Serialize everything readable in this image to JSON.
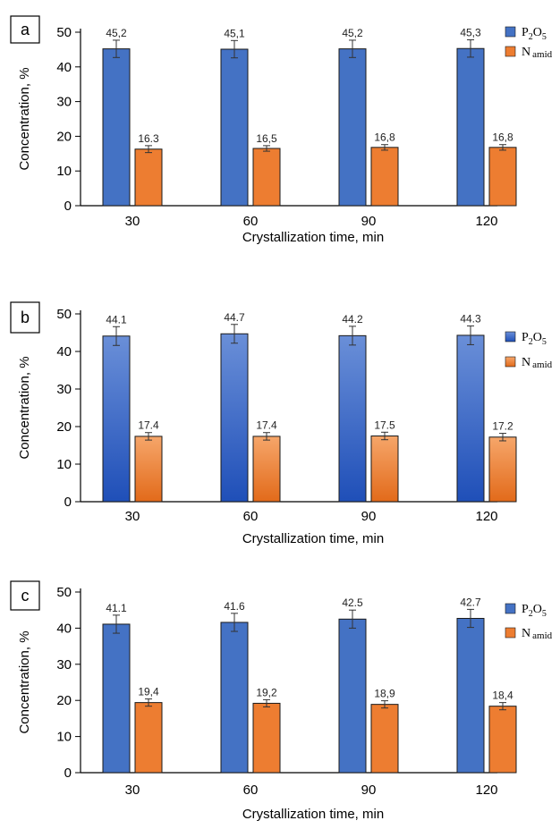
{
  "chart_data": [
    {
      "panel_label": "a",
      "type": "bar",
      "categories": [
        "30",
        "60",
        "90",
        "120"
      ],
      "series": [
        {
          "name": "P2O5",
          "legend": {
            "main": "P",
            "sub1": "2",
            "mid": "O",
            "sub2": "5"
          },
          "values": [
            45.2,
            45.1,
            45.2,
            45.3
          ],
          "labels": [
            "45,2",
            "45,1",
            "45,2",
            "45,3"
          ],
          "errors": [
            2.5,
            2.5,
            2.5,
            2.5
          ],
          "color": "#4472C4"
        },
        {
          "name": "Namid",
          "legend": {
            "main": "N",
            "sub1": "amid"
          },
          "values": [
            16.3,
            16.5,
            16.8,
            16.8
          ],
          "labels": [
            "16.3",
            "16,5",
            "16,8",
            "16,8"
          ],
          "errors": [
            1.0,
            0.8,
            0.8,
            0.8
          ],
          "color": "#ED7D31"
        }
      ],
      "xlabel": "Crystallization time, min",
      "ylabel": "Concentration, %",
      "ylim": [
        0,
        50
      ],
      "yticks": [
        "0",
        "10",
        "20",
        "30",
        "40",
        "50"
      ],
      "style": "flat",
      "legend_position": "right"
    },
    {
      "panel_label": "b",
      "type": "bar",
      "categories": [
        "30",
        "60",
        "90",
        "120"
      ],
      "series": [
        {
          "name": "P2O5",
          "legend": {
            "main": "P",
            "sub1": "2",
            "mid": "O",
            "sub2": "5"
          },
          "values": [
            44.1,
            44.7,
            44.2,
            44.3
          ],
          "labels": [
            "44.1",
            "44.7",
            "44.2",
            "44.3"
          ],
          "errors": [
            2.5,
            2.5,
            2.5,
            2.5
          ],
          "color": "#2E5FC4"
        },
        {
          "name": "Namid",
          "legend": {
            "main": "N",
            "sub1": "amid"
          },
          "values": [
            17.4,
            17.4,
            17.5,
            17.2
          ],
          "labels": [
            "17.4",
            "17.4",
            "17.5",
            "17.2"
          ],
          "errors": [
            1.0,
            1.0,
            1.0,
            1.0
          ],
          "color": "#ED7D31"
        }
      ],
      "xlabel": "Crystallization time, min",
      "ylabel": "Concentration, %",
      "ylim": [
        0,
        50
      ],
      "yticks": [
        "0",
        "10",
        "20",
        "30",
        "40",
        "50"
      ],
      "style": "gradient",
      "legend_position": "right"
    },
    {
      "panel_label": "c",
      "type": "bar",
      "categories": [
        "30",
        "60",
        "90",
        "120"
      ],
      "series": [
        {
          "name": "P2O5",
          "legend": {
            "main": "P",
            "sub1": "2",
            "mid": "O",
            "sub2": "5"
          },
          "values": [
            41.1,
            41.6,
            42.5,
            42.7
          ],
          "labels": [
            "41.1",
            "41.6",
            "42.5",
            "42.7"
          ],
          "errors": [
            2.5,
            2.5,
            2.5,
            2.5
          ],
          "color": "#4472C4"
        },
        {
          "name": "Namid",
          "legend": {
            "main": "N",
            "sub1": "amid"
          },
          "values": [
            19.4,
            19.2,
            18.9,
            18.4
          ],
          "labels": [
            "19,4",
            "19,2",
            "18,9",
            "18,4"
          ],
          "errors": [
            1.0,
            1.0,
            1.0,
            1.0
          ],
          "color": "#ED7D31"
        }
      ],
      "xlabel": "Crystallization time, min",
      "ylabel": "Concentration, %",
      "ylim": [
        0,
        50
      ],
      "yticks": [
        "0",
        "10",
        "20",
        "30",
        "40",
        "50"
      ],
      "style": "flat",
      "legend_position": "right"
    }
  ]
}
